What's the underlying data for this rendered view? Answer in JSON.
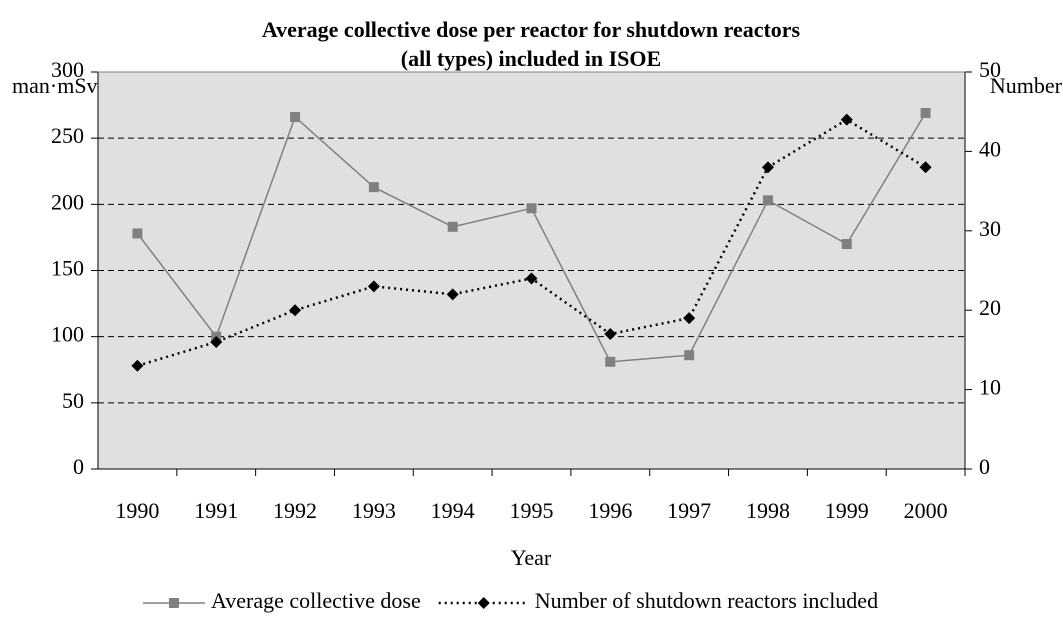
{
  "chart_data": {
    "type": "line",
    "title": [
      "Average collective dose per reactor for shutdown reactors",
      "(all types) included in ISOE"
    ],
    "xlabel": "Year",
    "ylabel": "man·mSv",
    "y2label": "Number",
    "categories": [
      "1990",
      "1991",
      "1992",
      "1993",
      "1994",
      "1995",
      "1996",
      "1997",
      "1998",
      "1999",
      "2000"
    ],
    "series": [
      {
        "name": "Average collective dose",
        "color": "#808080",
        "axis": "y",
        "dash": false,
        "marker": "square",
        "values": [
          178,
          100,
          266,
          213,
          183,
          197,
          81,
          86,
          203,
          170,
          269
        ]
      },
      {
        "name": "Number of shutdown reactors included",
        "color": "#000000",
        "axis": "y2",
        "dash": true,
        "marker": "diamond",
        "values": [
          13,
          16,
          20,
          23,
          22,
          24,
          17,
          19,
          38,
          44,
          38
        ]
      }
    ],
    "ylim": [
      0,
      300
    ],
    "yticks": [
      0,
      50,
      100,
      150,
      200,
      250,
      300
    ],
    "y2lim": [
      0,
      50
    ],
    "y2ticks": [
      0,
      10,
      20,
      30,
      40,
      50
    ],
    "grid": true,
    "legend": "bottom"
  }
}
